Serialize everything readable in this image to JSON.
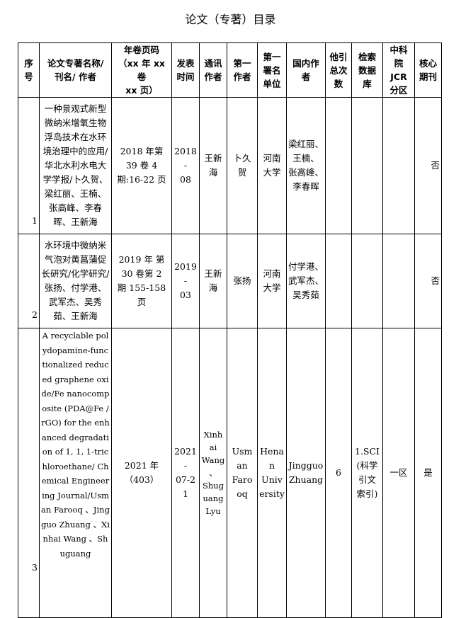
{
  "title": "论文（专著）目录",
  "headers": [
    "序\n号",
    "论文专著名称/\n刊名/ 作者",
    "年卷页码\n（xx 年 xx 卷\nxx 页）",
    "发表\n时间",
    "通讯\n作者",
    "第一\n作者",
    "第一\n署名\n单位",
    "国内作\n者",
    "他引\n总次\n数",
    "检索\n数据\n库",
    "中科\n院\nJCR\n分区",
    "核心\n期刊"
  ],
  "rows": [
    {
      "seq": "1",
      "title": "一种景观式新型微纳米增氧生物浮岛技术在水环境治理中的应用/华北水利水电大学学报/卜久贺、梁红丽、王楠、张高峰、李春晖、王新海",
      "volume": "2018 年第\n39 卷 4\n期:16-22 页",
      "date": "2018-\n08",
      "corresponding": "王新\n海",
      "first_author": "卜久\n贺",
      "affiliation": "河南\n大学",
      "domestic": "梁红丽、\n王楠、\n张高峰、\n李春晖",
      "citations": "",
      "database": "",
      "jcr": "",
      "core": "否"
    },
    {
      "seq": "2",
      "title": "水环境中微纳米气泡对黄菖蒲促长研究/化学研究/张扬、付学港、武军杰、吴秀茹、王新海",
      "volume": "2019 年 第\n30 卷第 2\n期 155-158\n页",
      "date": "2019-\n03",
      "corresponding": "王新\n海",
      "first_author": "张扬",
      "affiliation": "河南\n大学",
      "domestic": "付学港、\n武军杰、\n吴秀茹",
      "citations": "",
      "database": "",
      "jcr": "",
      "core": "否"
    },
    {
      "seq": "3",
      "title": "A recyclable polydopamine-functionalized reduced graphene oxide/Fe nanocomposite (PDA@Fe /rGO) for the enhanced degradation of 1, 1, 1-trichloroethane/ Chemical Engineering Journal/Usman Farooq 、Jingguo Zhuang 、Xinhai Wang 、Shuguang",
      "volume": "2021 年\n（403）",
      "date": "2021-\n07-21",
      "corresponding": "Xinh\nai\nWang\n、\nShug\nuang\nLyu",
      "first_author": "Usm\nan\nFaro\noq",
      "affiliation": "Hena\nn\nUniv\nersity",
      "domestic": "Jingguo\nZhuang",
      "citations": "6",
      "database": "1.SCI\n(科学\n引文\n索引)",
      "jcr": "一区",
      "core": "是"
    }
  ]
}
